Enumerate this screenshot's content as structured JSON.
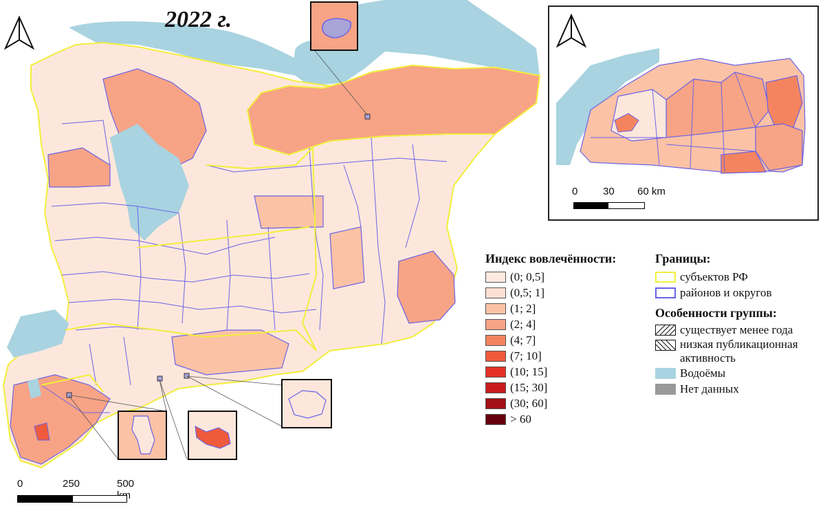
{
  "title": "2022 г.",
  "legend_index": {
    "title": "Индекс вовлечённости:",
    "classes": [
      {
        "label": "(0; 0,5]",
        "color": "#fde9df"
      },
      {
        "label": "(0,5; 1]",
        "color": "#fde0d2"
      },
      {
        "label": "(1; 2]",
        "color": "#fbc2a6"
      },
      {
        "label": "(2; 4]",
        "color": "#f7a386"
      },
      {
        "label": "(4; 7]",
        "color": "#f4845f"
      },
      {
        "label": "(7; 10]",
        "color": "#ef5a3c"
      },
      {
        "label": "(10; 15]",
        "color": "#e33126"
      },
      {
        "label": "(15; 30]",
        "color": "#c91b1f"
      },
      {
        "label": "(30; 60]",
        "color": "#a20f16"
      },
      {
        "label": "> 60",
        "color": "#67000d"
      }
    ]
  },
  "legend_bounds": {
    "title": "Границы:",
    "subjects": "субъектов РФ",
    "districts": "районов и округов"
  },
  "legend_features": {
    "title": "Особенности группы:",
    "less_year": "существует менее года",
    "low_pub_1": "низкая публикационная",
    "low_pub_2": "активность",
    "water": "Водоёмы",
    "nodata": "Нет данных"
  },
  "colors": {
    "water": "#a9d3e0",
    "subject_border": "#f2ee3c",
    "district_border": "#6a63e6",
    "nodata": "#999999"
  },
  "scale_main": {
    "t0": "0",
    "t1": "250",
    "t2": "500 km"
  },
  "scale_inset": {
    "t0": "0",
    "t1": "30",
    "t2": "60 km"
  },
  "icons": [
    "north-arrow-icon"
  ]
}
